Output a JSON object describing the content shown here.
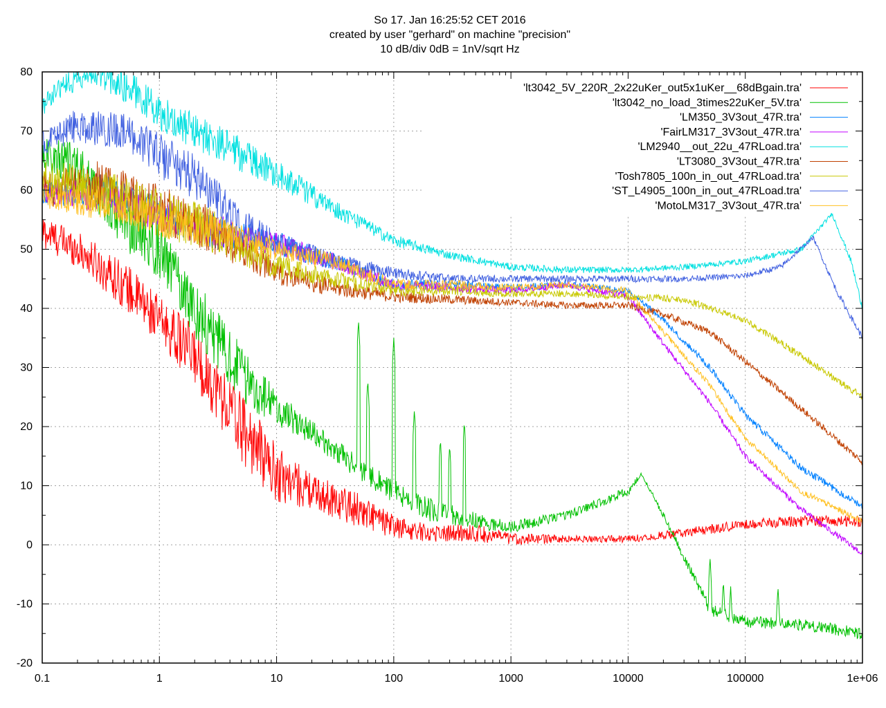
{
  "chart_data": {
    "type": "line",
    "title": [
      "So 17. Jan 16:25:52 CET 2016",
      "created by user \"gerhard\" on machine \"precision\"",
      "10 dB/div   0dB = 1nV/sqrt Hz"
    ],
    "xlabel": "",
    "ylabel": "",
    "xscale": "log",
    "xlim": [
      0.1,
      1000000
    ],
    "ylim": [
      -20,
      80
    ],
    "grid": true,
    "legend_position": "top-right",
    "x_ticks": [
      0.1,
      1,
      10,
      100,
      1000,
      10000,
      100000,
      1000000
    ],
    "x_tick_labels": [
      "0.1",
      "1",
      "10",
      "100",
      "1000",
      "10000",
      "100000",
      "1e+06"
    ],
    "y_ticks": [
      -20,
      -10,
      0,
      10,
      20,
      30,
      40,
      50,
      60,
      70,
      80
    ],
    "y_tick_labels": [
      "-20",
      "-10",
      "0",
      "10",
      "20",
      "30",
      "40",
      "50",
      "60",
      "70",
      "80"
    ],
    "series": [
      {
        "name": "'lt3042_5V_220R_2x22uKer_out5x1uKer__68dBgain.tra'",
        "color": "#ff0000",
        "x": [
          0.1,
          0.2,
          0.5,
          1,
          2,
          5,
          10,
          20,
          50,
          100,
          200,
          500,
          1000,
          3000,
          10000,
          30000,
          100000,
          300000,
          1000000
        ],
        "y": [
          53,
          50,
          44,
          38,
          32,
          20,
          12,
          9,
          6,
          3,
          2,
          2,
          1,
          1,
          1,
          2,
          3.5,
          4,
          4
        ],
        "noise": [
          3,
          3,
          4,
          4,
          5,
          6,
          5,
          3,
          3,
          2,
          1.5,
          1.5,
          1,
          0.6,
          0.6,
          0.8,
          0.8,
          1,
          1
        ]
      },
      {
        "name": "'lt3042_no_load_3times22uKer_5V.tra'",
        "color": "#00c000",
        "x": [
          0.1,
          0.2,
          0.5,
          1,
          2,
          5,
          10,
          20,
          50,
          100,
          200,
          500,
          1000,
          3000,
          10000,
          13000,
          20000,
          30000,
          50000,
          100000,
          300000,
          1000000
        ],
        "y": [
          66,
          64,
          55,
          50,
          40,
          29,
          23,
          19,
          13,
          9,
          6,
          4,
          3,
          5,
          9,
          12,
          5,
          -2,
          -11,
          -13,
          -13.5,
          -15
        ],
        "noise": [
          3,
          4,
          5,
          5,
          5,
          5,
          3,
          2,
          2,
          2,
          2,
          1.5,
          1,
          0.8,
          0.8,
          0.3,
          0.5,
          0.8,
          1,
          1,
          1,
          1
        ],
        "spikes": [
          [
            50,
            38
          ],
          [
            60,
            28
          ],
          [
            100,
            35
          ],
          [
            150,
            23
          ],
          [
            250,
            18
          ],
          [
            300,
            17
          ],
          [
            400,
            21
          ],
          [
            50000,
            -2
          ],
          [
            65000,
            -6
          ],
          [
            75000,
            -7
          ],
          [
            190000,
            -7
          ]
        ]
      },
      {
        "name": "'LM350_3V3out_47R.tra'",
        "color": "#0080ff",
        "x": [
          0.1,
          0.3,
          1,
          3,
          10,
          30,
          100,
          300,
          1000,
          3000,
          10000,
          20000,
          50000,
          100000,
          300000,
          1000000
        ],
        "y": [
          59,
          60,
          56,
          53,
          51,
          48,
          44,
          44,
          43.5,
          44,
          43,
          38,
          30,
          22,
          13,
          6.5
        ],
        "noise": [
          2,
          3,
          3,
          3,
          2,
          1.5,
          1,
          0.8,
          0.6,
          0.6,
          0.5,
          0.5,
          0.6,
          0.6,
          0.6,
          0.6
        ]
      },
      {
        "name": "'FairLM317_3V3out_47R.tra'",
        "color": "#c000ff",
        "x": [
          0.1,
          0.3,
          1,
          3,
          10,
          30,
          100,
          300,
          1000,
          3000,
          10000,
          20000,
          50000,
          100000,
          300000,
          1000000
        ],
        "y": [
          60,
          59,
          56,
          53,
          51,
          48,
          44,
          43.5,
          43,
          44,
          42,
          34,
          24,
          15,
          6,
          -1.5
        ],
        "noise": [
          2,
          3,
          3,
          3,
          2,
          1.5,
          1,
          0.8,
          0.6,
          0.6,
          0.6,
          0.5,
          0.5,
          0.5,
          0.5,
          0.5
        ]
      },
      {
        "name": "'LM2940__out_22u_47RLoad.tra'",
        "color": "#00e0e0",
        "x": [
          0.1,
          0.15,
          0.3,
          0.6,
          1,
          2,
          5,
          10,
          30,
          100,
          300,
          1000,
          3000,
          10000,
          30000,
          100000,
          300000,
          550000,
          800000,
          1000000
        ],
        "y": [
          74,
          78,
          79.5,
          77,
          73,
          70,
          66,
          63,
          57,
          51.5,
          49,
          47,
          46.5,
          46.5,
          47,
          48,
          50,
          56,
          48,
          40
        ],
        "noise": [
          1.5,
          2,
          2,
          3,
          3,
          3,
          3,
          2.5,
          1.5,
          1,
          0.7,
          0.6,
          0.6,
          0.5,
          0.5,
          0.5,
          0.5,
          0.3,
          0.5,
          0.5
        ]
      },
      {
        "name": "'LT3080_3V3out_47R.tra'",
        "color": "#c04000",
        "x": [
          0.1,
          0.3,
          1,
          3,
          10,
          30,
          100,
          300,
          1000,
          3000,
          10000,
          20000,
          50000,
          100000,
          300000,
          1000000
        ],
        "y": [
          60,
          61,
          57,
          53,
          46,
          43.5,
          42,
          41.5,
          41,
          40.5,
          40.5,
          39,
          36,
          31,
          23,
          14
        ],
        "noise": [
          3,
          4,
          4,
          4,
          2,
          1.5,
          1,
          0.8,
          0.6,
          0.6,
          0.6,
          0.6,
          0.6,
          0.6,
          0.6,
          0.6
        ]
      },
      {
        "name": "'Tosh7805_100n_in_out_47RLoad.tra'",
        "color": "#c8c800",
        "x": [
          0.1,
          0.3,
          1,
          3,
          10,
          30,
          100,
          300,
          1000,
          3000,
          10000,
          30000,
          100000,
          300000,
          1000000
        ],
        "y": [
          62,
          60,
          56,
          53,
          47,
          45,
          43,
          43,
          42.5,
          42.5,
          42,
          41.5,
          38,
          32,
          25
        ],
        "noise": [
          3,
          4,
          4,
          4,
          2,
          1.5,
          1,
          0.8,
          0.6,
          0.6,
          0.6,
          0.6,
          0.5,
          0.6,
          0.6
        ]
      },
      {
        "name": "'ST_L4905_100n_in_out_47RLoad.tra'",
        "color": "#4060e0",
        "x": [
          0.1,
          0.2,
          0.5,
          1,
          2,
          5,
          10,
          30,
          100,
          300,
          1000,
          3000,
          10000,
          30000,
          100000,
          200000,
          380000,
          600000,
          1000000
        ],
        "y": [
          68,
          71,
          70,
          66,
          62,
          54,
          51,
          48,
          46,
          45,
          45,
          45,
          45,
          45,
          45.5,
          47,
          52,
          43,
          35
        ],
        "noise": [
          2,
          3,
          3,
          4,
          4,
          3,
          2,
          1.5,
          1,
          0.7,
          0.6,
          0.6,
          0.6,
          0.5,
          0.5,
          0.5,
          0.3,
          0.5,
          0.5
        ]
      },
      {
        "name": "'MotoLM317_3V3out_47R.tra'",
        "color": "#ffc020",
        "x": [
          0.1,
          0.3,
          1,
          3,
          10,
          30,
          100,
          300,
          1000,
          3000,
          10000,
          20000,
          50000,
          100000,
          300000,
          1000000
        ],
        "y": [
          59,
          58,
          55,
          53,
          50,
          48,
          44,
          44,
          43.5,
          44,
          43,
          36,
          27,
          18,
          9,
          4
        ],
        "noise": [
          2,
          3,
          3,
          3,
          2,
          1.5,
          1,
          0.8,
          0.6,
          0.6,
          0.6,
          0.5,
          0.5,
          0.5,
          0.5,
          0.5
        ]
      }
    ]
  }
}
